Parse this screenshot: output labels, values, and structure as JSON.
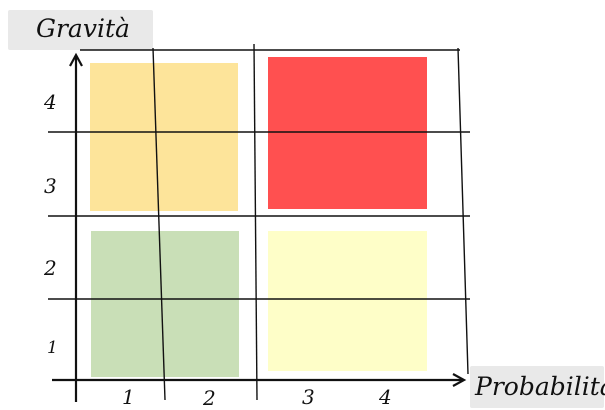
{
  "diagram": {
    "y_axis_label": "Gravità",
    "x_axis_label": "Probabilità",
    "y_ticks": [
      "4",
      "3",
      "2",
      "1"
    ],
    "x_ticks": [
      "1",
      "2",
      "3",
      "4"
    ],
    "quadrants": [
      {
        "position": "top-left",
        "color": "#fde49a"
      },
      {
        "position": "top-right",
        "color": "#ff5050"
      },
      {
        "position": "bottom-left",
        "color": "#c9dfb7"
      },
      {
        "position": "bottom-right",
        "color": "#fefec8"
      }
    ]
  }
}
